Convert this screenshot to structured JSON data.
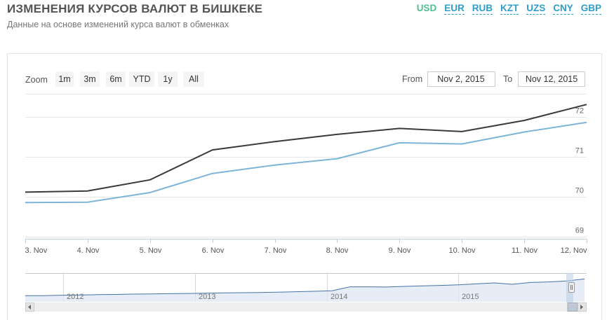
{
  "header": {
    "title": "ИЗМЕНЕНИЯ КУРСОВ ВАЛЮТ В БИШКЕКЕ",
    "subtitle": "Данные на основе изменений курса валют в обменках"
  },
  "currencies": [
    {
      "code": "USD",
      "active": true
    },
    {
      "code": "EUR",
      "active": false
    },
    {
      "code": "RUB",
      "active": false
    },
    {
      "code": "KZT",
      "active": false
    },
    {
      "code": "UZS",
      "active": false
    },
    {
      "code": "CNY",
      "active": false
    },
    {
      "code": "GBP",
      "active": false
    }
  ],
  "range_selector": {
    "zoom_label": "Zoom",
    "buttons": [
      "1m",
      "3m",
      "6m",
      "YTD",
      "1y",
      "All"
    ],
    "from_label": "From",
    "from_value": "Nov 2, 2015",
    "to_label": "To",
    "to_value": "Nov 12, 2015"
  },
  "colors": {
    "series_dark": "#3a3a3a",
    "series_light": "#7cb5d8",
    "navigator_series": "#4572a7",
    "tab_active": "#4fbf8f",
    "tab_link": "#2e9fc9"
  },
  "chart_data": {
    "type": "line",
    "x": [
      "3. Nov",
      "4. Nov",
      "5. Nov",
      "6. Nov",
      "7. Nov",
      "8. Nov",
      "9. Nov",
      "10. Nov",
      "11. Nov",
      "12. Nov"
    ],
    "series": [
      {
        "values": [
          70.12,
          70.15,
          70.43,
          71.18,
          71.39,
          71.57,
          71.72,
          71.64,
          71.92,
          72.32
        ]
      },
      {
        "values": [
          69.86,
          69.87,
          70.11,
          70.59,
          70.8,
          70.96,
          71.36,
          71.33,
          71.63,
          71.87
        ]
      }
    ],
    "ylim": [
      68.95,
      72.5
    ],
    "y_ticks": [
      "69",
      "70",
      "71",
      "72"
    ],
    "grid": "horizontal",
    "y_axis_side": "right"
  },
  "navigator": {
    "year_labels": [
      "2012",
      "2013",
      "2014",
      "2015"
    ],
    "levels": [
      0.1,
      0.1,
      0.12,
      0.13,
      0.15,
      0.16,
      0.18,
      0.19,
      0.2,
      0.21,
      0.22,
      0.24,
      0.25,
      0.26,
      0.28,
      0.3,
      0.32,
      0.35,
      0.55,
      0.55,
      0.54,
      0.57,
      0.6,
      0.62,
      0.65,
      0.7,
      0.75,
      0.68,
      0.77,
      0.8,
      0.85,
      0.95
    ]
  }
}
